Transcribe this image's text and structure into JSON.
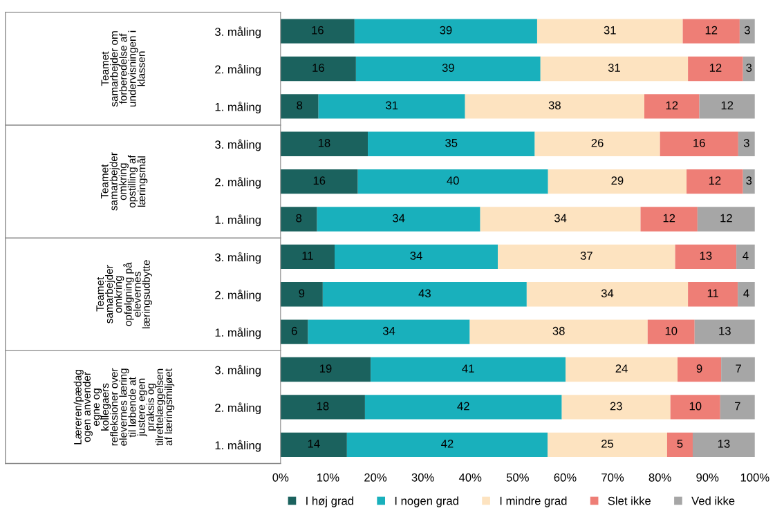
{
  "chart_data": {
    "type": "bar",
    "orientation": "horizontal",
    "stacked": true,
    "categories": [
      "3. måling",
      "2. måling",
      "1. måling",
      "3. måling",
      "2. måling",
      "1. måling",
      "3. måling",
      "2. måling",
      "1. måling",
      "3. måling",
      "2. måling",
      "1. måling"
    ],
    "series": [
      {
        "name": "I høj grad",
        "color": "#1b625e",
        "values": [
          15.6,
          15.9,
          8.0,
          18.4,
          16.3,
          7.7,
          11.4,
          8.9,
          5.8,
          19.0,
          17.8,
          14.0
        ],
        "value_labels": [
          "16",
          "16",
          "8",
          "18",
          "16",
          "8",
          "11",
          "9",
          "6",
          "19",
          "18",
          "14"
        ]
      },
      {
        "name": "I nogen grad",
        "color": "#19b0bc",
        "values": [
          38.5,
          38.9,
          30.9,
          35.2,
          40.1,
          34.4,
          34.4,
          43.0,
          34.1,
          41.1,
          41.5,
          42.3
        ],
        "value_labels": [
          "39",
          "39",
          "31",
          "35",
          "40",
          "34",
          "34",
          "43",
          "34",
          "41",
          "42",
          "42"
        ]
      },
      {
        "name": "I mindre grad",
        "color": "#fde3c0",
        "values": [
          30.7,
          31.1,
          37.8,
          26.4,
          29.2,
          33.8,
          37.4,
          34.0,
          37.5,
          23.6,
          22.9,
          25.2
        ],
        "value_labels": [
          "31",
          "31",
          "38",
          "26",
          "29",
          "34",
          "37",
          "34",
          "38",
          "24",
          "23",
          "25"
        ]
      },
      {
        "name": "Slet ikke",
        "color": "#ee7e76",
        "values": [
          12.0,
          11.6,
          11.6,
          16.5,
          11.9,
          12.0,
          12.9,
          10.5,
          9.9,
          9.2,
          10.5,
          5.4
        ],
        "value_labels": [
          "12",
          "12",
          "12",
          "16",
          "12",
          "12",
          "13",
          "11",
          "10",
          "9",
          "10",
          "5"
        ]
      },
      {
        "name": "Ved ikke",
        "color": "#a6a6a6",
        "values": [
          3.2,
          2.5,
          11.7,
          3.5,
          2.5,
          12.1,
          3.9,
          3.6,
          12.7,
          7.3,
          7.3,
          13.1
        ],
        "value_labels": [
          "3",
          "3",
          "12",
          "3",
          "3",
          "12",
          "4",
          "4",
          "13",
          "7",
          "7",
          "13"
        ]
      }
    ],
    "xlim": [
      0,
      100
    ],
    "xticks": [
      {
        "value": 0,
        "label": "0%"
      },
      {
        "value": 10,
        "label": "10%"
      },
      {
        "value": 20,
        "label": "20%"
      },
      {
        "value": 30,
        "label": "30%"
      },
      {
        "value": 40,
        "label": "40%"
      },
      {
        "value": 50,
        "label": "50%"
      },
      {
        "value": 60,
        "label": "60%"
      },
      {
        "value": 70,
        "label": "70%"
      },
      {
        "value": 80,
        "label": "80%"
      },
      {
        "value": 90,
        "label": "90%"
      },
      {
        "value": 100,
        "label": "100%"
      }
    ],
    "annotations": [
      "Teamet\nsamarbejder om\nforberedelse af\nundervisningen i\nklassen",
      "Teamet\nsamarbejder\nomkring\nopstilling af\nlæringsmål",
      "Teamet\nsamarbejder\nomkring\nopfølgning på\nelevernes\nlæringsudbytte",
      "Læreren/pædag\nogen anvender\negne og\nkollegaers\nrefleksioner over\nelevernes læring\ntil løbende at\njustere egen\npraksis og\ntilrettelæggelsen\naf læringsmiljøet"
    ],
    "grid": false,
    "legend": "bottom"
  }
}
